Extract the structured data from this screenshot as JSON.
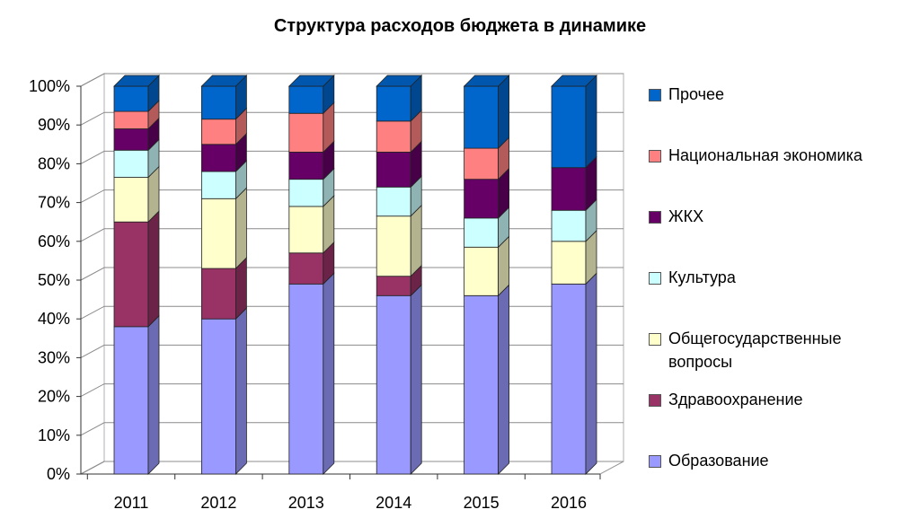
{
  "chart_data": {
    "type": "bar",
    "stacked": true,
    "percent": true,
    "title": "Структура расходов бюджета в динамике",
    "categories": [
      "2011",
      "2012",
      "2013",
      "2014",
      "2015",
      "2016"
    ],
    "y_ticks": [
      "0%",
      "10%",
      "20%",
      "30%",
      "40%",
      "50%",
      "60%",
      "70%",
      "80%",
      "90%",
      "100%"
    ],
    "ylim": [
      0,
      100
    ],
    "legend_position": "right",
    "series": [
      {
        "name": "Образование",
        "color": "#9999ff",
        "values": [
          38,
          40,
          49,
          46,
          46,
          49
        ]
      },
      {
        "name": "Здравоохранение",
        "color": "#993366",
        "values": [
          27,
          13,
          8,
          5,
          0,
          0
        ]
      },
      {
        "name": "Общегосударственные вопросы",
        "color": "#ffffcc",
        "values": [
          11.5,
          18,
          12,
          15.5,
          12.5,
          11
        ]
      },
      {
        "name": "Культура",
        "color": "#ccffff",
        "values": [
          7,
          7,
          7,
          7.5,
          7.5,
          8
        ]
      },
      {
        "name": "ЖКХ",
        "color": "#660066",
        "values": [
          5.5,
          7,
          7,
          9,
          10,
          11
        ]
      },
      {
        "name": "Национальная экономика",
        "color": "#ff8080",
        "values": [
          4.5,
          6.5,
          10,
          8,
          8,
          0
        ]
      },
      {
        "name": "Прочее",
        "color": "#0066cc",
        "values": [
          6.5,
          8.5,
          7,
          9,
          16,
          21
        ]
      }
    ]
  }
}
